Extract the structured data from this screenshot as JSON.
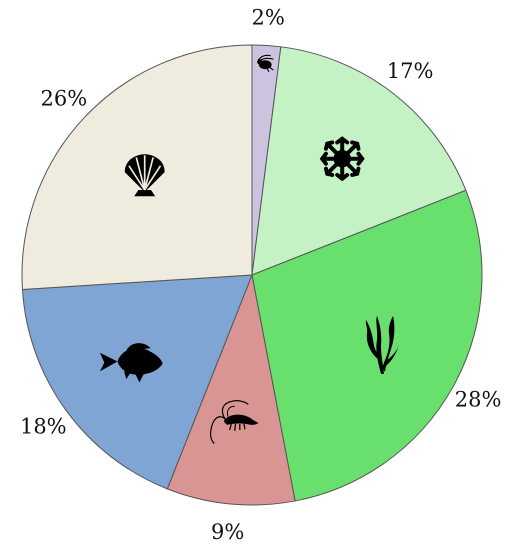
{
  "chart_data": {
    "type": "pie",
    "title": "",
    "start_angle_deg": 0,
    "direction": "clockwise",
    "slices": [
      {
        "label": "2%",
        "value": 2,
        "color": "#cbc3e0",
        "icon": "copepod-icon"
      },
      {
        "label": "17%",
        "value": 17,
        "color": "#c4f2c4",
        "icon": "coral-polyp-icon"
      },
      {
        "label": "28%",
        "value": 28,
        "color": "#69e06e",
        "icon": "seaweed-icon"
      },
      {
        "label": "9%",
        "value": 9,
        "color": "#d99593",
        "icon": "shrimp-icon"
      },
      {
        "label": "18%",
        "value": 18,
        "color": "#7fa5d4",
        "icon": "fish-icon"
      },
      {
        "label": "26%",
        "value": 26,
        "color": "#efebdf",
        "icon": "scallop-shell-icon"
      }
    ],
    "legend": "none"
  }
}
